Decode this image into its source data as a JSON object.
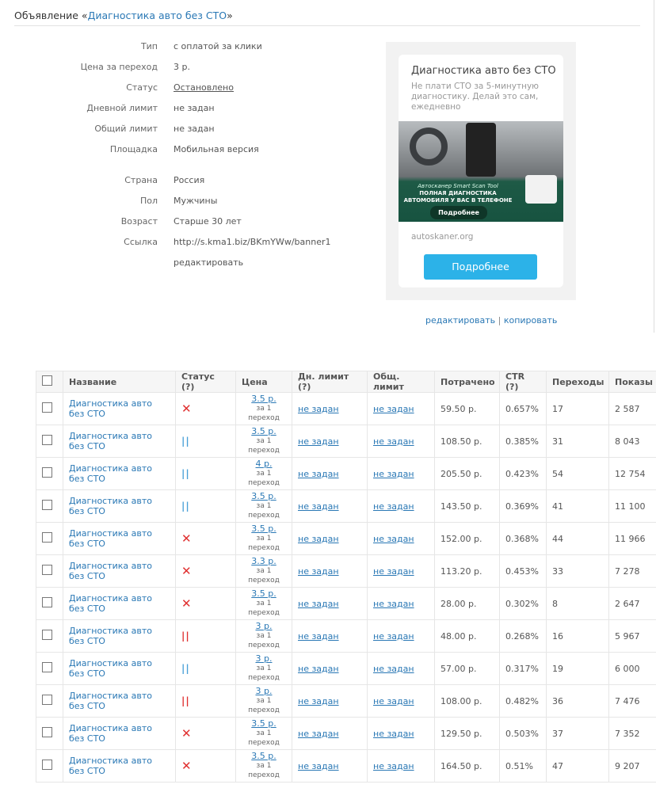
{
  "header": {
    "prefix": "Объявление «",
    "name": "Диагностика авто без СТО",
    "suffix": "»"
  },
  "props": [
    {
      "k": "Тип",
      "v": "с оплатой за клики",
      "link": false
    },
    {
      "k": "Цена за переход",
      "v": "3 р.",
      "link": true
    },
    {
      "k": "Статус",
      "v": "Остановлено",
      "link": true,
      "underline": true
    },
    {
      "k": "Дневной лимит",
      "v": "не задан",
      "link": true
    },
    {
      "k": "Общий лимит",
      "v": "не задан",
      "link": true
    },
    {
      "k": "Площадка",
      "v": "Мобильная версия",
      "link": false
    },
    {
      "k": "Страна",
      "v": "Россия",
      "link": false
    },
    {
      "k": "Пол",
      "v": "Мужчины",
      "link": false
    },
    {
      "k": "Возраст",
      "v": "Старше 30 лет",
      "link": false
    },
    {
      "k": "Ссылка",
      "v": "http://s.kma1.biz/BKmYWw/banner1",
      "link": true
    }
  ],
  "edit_label": "редактировать",
  "ad": {
    "title": "Диагностика авто без СТО",
    "desc": "Не плати СТО за 5-минутную диагностику. Делай это сам, ежедневно",
    "image_caption": "Автосканер Smart Scan Tool",
    "image_headline": "ПОЛНАЯ ДИАГНОСТИКА АВТОМОБИЛЯ У ВАС В ТЕЛЕФОНЕ",
    "image_button": "Подробнее",
    "domain": "autoskaner.org",
    "button": "Подробнее",
    "accent": "#2cb2e8"
  },
  "ad_actions": {
    "edit": "редактировать",
    "sep": "|",
    "copy": "копировать"
  },
  "table": {
    "columns": [
      "Название",
      "Статус (?)",
      "Цена",
      "Дн. лимит (?)",
      "Общ. лимит",
      "Потрачено",
      "CTR (?)",
      "Переходы",
      "Показы"
    ],
    "per_click": "за 1 переход",
    "rows": [
      {
        "name": "Диагностика авто без СТО",
        "status": "stopped",
        "price": "3.5 р.",
        "day": "не задан",
        "total": "не задан",
        "spent": "59.50 р.",
        "ctr": "0.657%",
        "clicks": "17",
        "shows": "2 587"
      },
      {
        "name": "Диагностика авто без СТО",
        "status": "paused-blue",
        "price": "3.5 р.",
        "day": "не задан",
        "total": "не задан",
        "spent": "108.50 р.",
        "ctr": "0.385%",
        "clicks": "31",
        "shows": "8 043"
      },
      {
        "name": "Диагностика авто без СТО",
        "status": "paused-blue",
        "price": "4 р.",
        "day": "не задан",
        "total": "не задан",
        "spent": "205.50 р.",
        "ctr": "0.423%",
        "clicks": "54",
        "shows": "12 754"
      },
      {
        "name": "Диагностика авто без СТО",
        "status": "paused-blue",
        "price": "3.5 р.",
        "day": "не задан",
        "total": "не задан",
        "spent": "143.50 р.",
        "ctr": "0.369%",
        "clicks": "41",
        "shows": "11 100"
      },
      {
        "name": "Диагностика авто без СТО",
        "status": "stopped",
        "price": "3.5 р.",
        "day": "не задан",
        "total": "не задан",
        "spent": "152.00 р.",
        "ctr": "0.368%",
        "clicks": "44",
        "shows": "11 966"
      },
      {
        "name": "Диагностика авто без СТО",
        "status": "stopped",
        "price": "3.3 р.",
        "day": "не задан",
        "total": "не задан",
        "spent": "113.20 р.",
        "ctr": "0.453%",
        "clicks": "33",
        "shows": "7 278"
      },
      {
        "name": "Диагностика авто без СТО",
        "status": "stopped",
        "price": "3.5 р.",
        "day": "не задан",
        "total": "не задан",
        "spent": "28.00 р.",
        "ctr": "0.302%",
        "clicks": "8",
        "shows": "2 647"
      },
      {
        "name": "Диагностика авто без СТО",
        "status": "paused-red",
        "price": "3 р.",
        "day": "не задан",
        "total": "не задан",
        "spent": "48.00 р.",
        "ctr": "0.268%",
        "clicks": "16",
        "shows": "5 967"
      },
      {
        "name": "Диагностика авто без СТО",
        "status": "paused-blue",
        "price": "3 р.",
        "day": "не задан",
        "total": "не задан",
        "spent": "57.00 р.",
        "ctr": "0.317%",
        "clicks": "19",
        "shows": "6 000"
      },
      {
        "name": "Диагностика авто без СТО",
        "status": "paused-red",
        "price": "3 р.",
        "day": "не задан",
        "total": "не задан",
        "spent": "108.00 р.",
        "ctr": "0.482%",
        "clicks": "36",
        "shows": "7 476"
      },
      {
        "name": "Диагностика авто без СТО",
        "status": "stopped",
        "price": "3.5 р.",
        "day": "не задан",
        "total": "не задан",
        "spent": "129.50 р.",
        "ctr": "0.503%",
        "clicks": "37",
        "shows": "7 352"
      },
      {
        "name": "Диагностика авто без СТО",
        "status": "stopped",
        "price": "3.5 р.",
        "day": "не задан",
        "total": "не задан",
        "spent": "164.50 р.",
        "ctr": "0.51%",
        "clicks": "47",
        "shows": "9 207"
      }
    ]
  }
}
